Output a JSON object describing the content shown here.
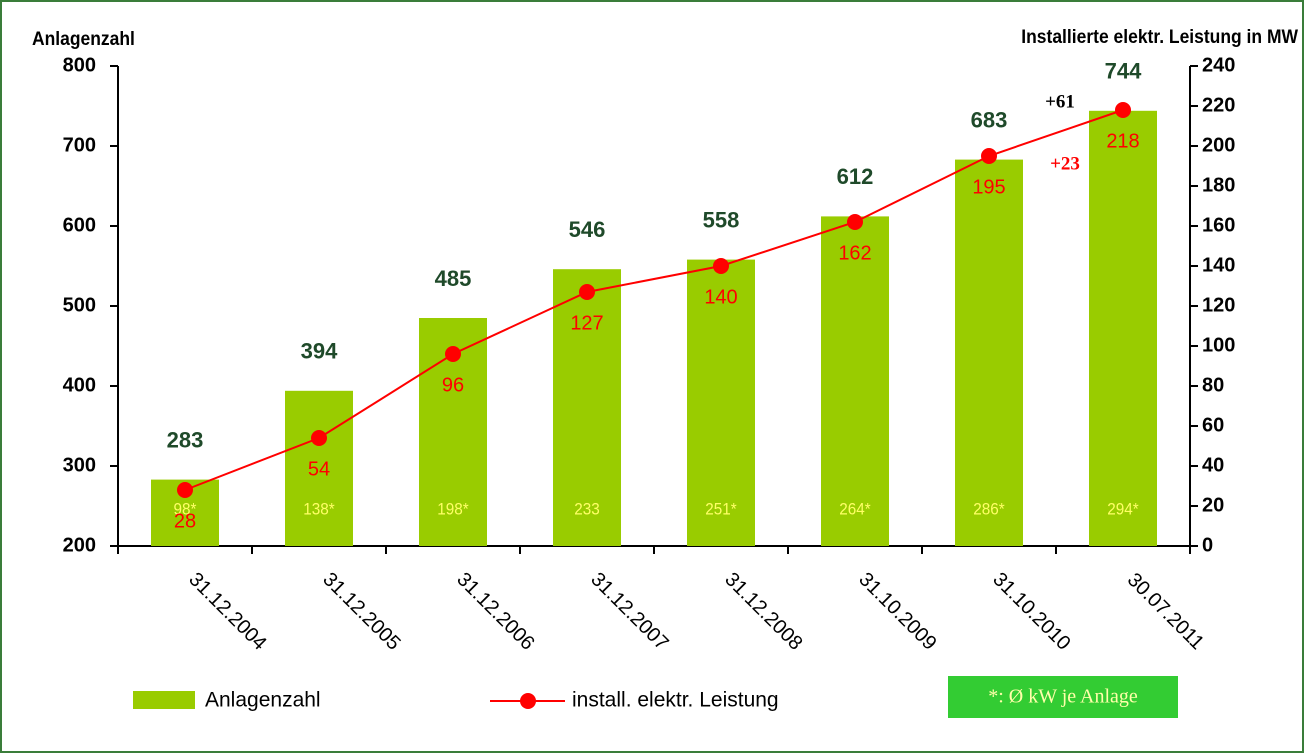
{
  "chart_data": {
    "type": "bar_line",
    "y_axis_label": "Anlagenzahl",
    "y2_axis_label": "Installierte elektr. Leistung in MW",
    "categories": [
      "31.12.2004",
      "31.12.2005",
      "31.12.2006",
      "31.12.2007",
      "31.12.2008",
      "31.10.2009",
      "31.10.2010",
      "30.07.2011"
    ],
    "series": [
      {
        "name": "Anlagenzahl",
        "type": "bar",
        "color": "#99cc00",
        "values": [
          283,
          394,
          485,
          546,
          558,
          612,
          683,
          744
        ]
      },
      {
        "name": "install. elektr. Leistung",
        "type": "line",
        "axis": "y2",
        "color": "#ff0000",
        "values": [
          28,
          54,
          96,
          127,
          140,
          162,
          195,
          218
        ]
      }
    ],
    "bar_annotations": [
      "98*",
      "138*",
      "198*",
      "233",
      "251*",
      "264*",
      "286*",
      "294*"
    ],
    "annotations": [
      "+61",
      "+23"
    ],
    "footnote": "*: Ø  kW je Anlage",
    "ylim": [
      200,
      800
    ],
    "yticks": [
      200,
      300,
      400,
      500,
      600,
      700,
      800
    ],
    "y2lim": [
      0,
      240
    ],
    "y2ticks": [
      0,
      20,
      40,
      60,
      80,
      100,
      120,
      140,
      160,
      180,
      200,
      220,
      240
    ]
  }
}
